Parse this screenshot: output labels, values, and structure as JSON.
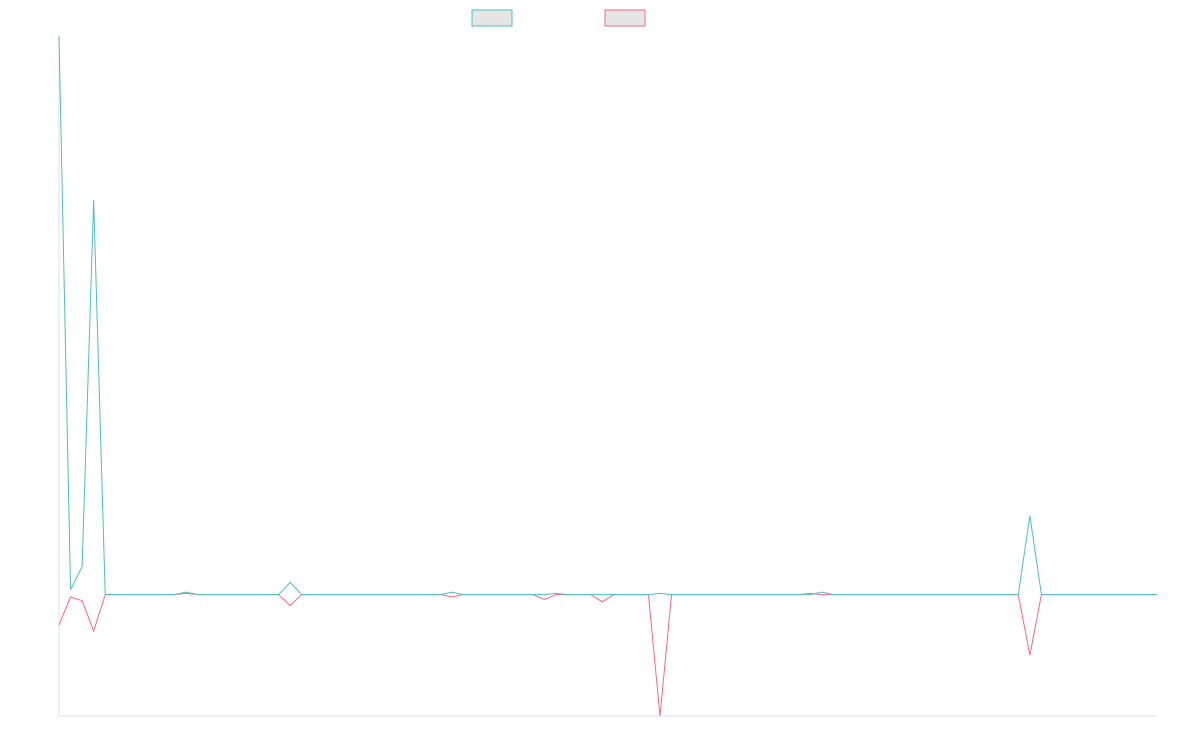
{
  "colors": {
    "series_a": "#4bc0c0",
    "series_b": "#ff6384",
    "legend_fill": "#e6e6e6",
    "axis": "#e0e0e0"
  },
  "chart_data": {
    "type": "line",
    "title": "",
    "xlabel": "",
    "ylabel": "",
    "x_count": 96,
    "ylim": [
      -100,
      460
    ],
    "grid": false,
    "legend_position": "top",
    "series": [
      {
        "color_key": "series_a",
        "values": [
          460,
          4,
          23,
          325,
          0,
          0,
          0,
          0,
          0,
          0,
          0,
          2,
          0,
          0,
          0,
          0,
          0,
          0,
          0,
          0,
          10,
          0,
          0,
          0,
          0,
          0,
          0,
          0,
          0,
          0,
          0,
          0,
          0,
          0,
          2,
          0,
          0,
          0,
          0,
          0,
          0,
          0,
          0,
          1,
          0,
          0,
          0,
          0,
          0,
          0,
          0,
          0,
          1,
          0,
          0,
          0,
          0,
          0,
          0,
          0,
          0,
          0,
          0,
          0,
          0,
          0,
          2,
          0,
          0,
          0,
          0,
          0,
          0,
          0,
          0,
          0,
          0,
          0,
          0,
          0,
          0,
          0,
          0,
          0,
          65,
          0,
          0,
          0,
          0,
          0,
          0,
          0,
          0,
          0,
          0,
          0
        ]
      },
      {
        "color_key": "series_b",
        "values": [
          -25,
          -2,
          -5,
          -30,
          0,
          0,
          0,
          0,
          0,
          0,
          0,
          1,
          0,
          0,
          0,
          0,
          0,
          0,
          0,
          0,
          -9,
          0,
          0,
          0,
          0,
          0,
          0,
          0,
          0,
          0,
          0,
          0,
          0,
          0,
          -2,
          0,
          0,
          0,
          0,
          0,
          0,
          0,
          -4,
          0,
          0,
          0,
          0,
          -6,
          0,
          0,
          0,
          0,
          -100,
          0,
          0,
          0,
          0,
          0,
          0,
          0,
          0,
          0,
          0,
          0,
          0,
          1,
          0,
          0,
          0,
          0,
          0,
          0,
          0,
          0,
          0,
          0,
          0,
          0,
          0,
          0,
          0,
          0,
          0,
          0,
          -50,
          0,
          0,
          0,
          0,
          0,
          0,
          0,
          0,
          0,
          0,
          0
        ]
      }
    ]
  }
}
